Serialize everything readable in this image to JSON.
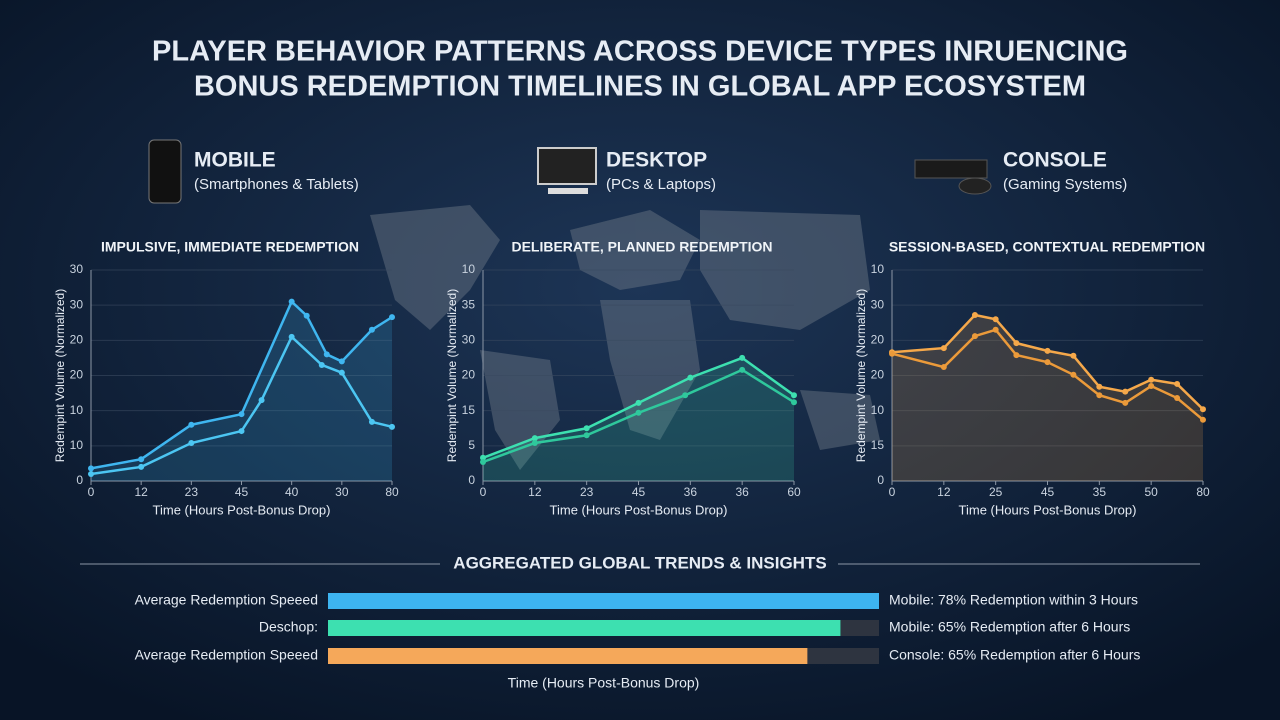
{
  "title_lines": [
    "PLAYER BEHAVIOR PATTERNS ACROSS DEVICE TYPES INRUENCING",
    "BONUS REDEMPTION TIMELINES IN GLOBAL APP ECOSYSTEM"
  ],
  "devices": [
    {
      "name": "MOBILE",
      "subtitle": "(Smartphones & Tablets)"
    },
    {
      "name": "DESKTOP",
      "subtitle": "(PCs & Laptops)"
    },
    {
      "name": "CONSOLE",
      "subtitle": "(Gaming Systems)"
    }
  ],
  "chart_data": [
    {
      "type": "line",
      "title": "IMPULSIVE, IMMEDIATE REDEMPTION",
      "y_label": "Redempint Volume (Normalized)",
      "x_label": "Time (Hours Post-Bonus Drop)",
      "xlim": [
        0,
        60
      ],
      "ylim": [
        0,
        30
      ],
      "xticks": [
        0,
        {
          "value": 10,
          "label": "12"
        },
        {
          "value": 20,
          "label": "23"
        },
        {
          "value": 30,
          "label": "45"
        },
        40,
        {
          "value": 50,
          "label": "30"
        },
        {
          "value": 60,
          "label": "80"
        }
      ],
      "yticks": [
        0,
        {
          "value": 5,
          "label": "10"
        },
        10,
        {
          "value": 15,
          "label": "20"
        },
        20,
        {
          "value": 25,
          "label": "30"
        },
        30
      ],
      "grid": true,
      "series": [
        {
          "color": "#3fb6f0",
          "x": [
            0,
            10,
            20,
            30,
            40,
            43,
            47,
            50,
            56,
            60
          ],
          "values": [
            1.8,
            3.1,
            8,
            9.5,
            25.5,
            23.5,
            18,
            17,
            21.5,
            23.3
          ]
        },
        {
          "color": "#4cc6f2",
          "x": [
            0,
            10,
            20,
            30,
            34,
            40,
            46,
            50,
            56,
            60
          ],
          "values": [
            1,
            2,
            5.4,
            7.1,
            11.5,
            20.5,
            16.5,
            15.4,
            8.4,
            7.7
          ]
        }
      ]
    },
    {
      "type": "line",
      "title": "DELIBERATE, PLANNED REDEMPTION",
      "y_label": "Redempint Volume (Normalized)",
      "x_label": "Time (Hours Post-Bonus Drop)",
      "xlim": [
        0,
        60
      ],
      "ylim": [
        0,
        30
      ],
      "xticks": [
        0,
        {
          "value": 10,
          "label": "12"
        },
        {
          "value": 20,
          "label": "23"
        },
        {
          "value": 30,
          "label": "45"
        },
        {
          "value": 40,
          "label": "36"
        },
        {
          "value": 50,
          "label": "36"
        },
        60
      ],
      "yticks": [
        0,
        5,
        {
          "value": 10,
          "label": "15"
        },
        {
          "value": 15,
          "label": "20"
        },
        {
          "value": 20,
          "label": "30"
        },
        {
          "value": 25,
          "label": "35"
        },
        {
          "value": 30,
          "label": "10"
        }
      ],
      "grid": true,
      "series": [
        {
          "color": "#3de0b0",
          "x": [
            0,
            10,
            20,
            30,
            40,
            50,
            60
          ],
          "values": [
            3.3,
            6.1,
            7.5,
            11.1,
            14.7,
            17.5,
            12.2
          ]
        },
        {
          "color": "#2fc89c",
          "x": [
            0,
            10,
            20,
            30,
            39,
            50,
            60
          ],
          "values": [
            2.7,
            5.4,
            6.5,
            9.7,
            12.2,
            15.8,
            11.2
          ]
        }
      ]
    },
    {
      "type": "line",
      "title": "SESSION-BASED, CONTEXTUAL REDEMPTION",
      "y_label": "Redempint Volume (Normalized)",
      "x_label": "Time (Hours Post-Bonus Drop)",
      "xlim": [
        0,
        60
      ],
      "ylim": [
        0,
        30
      ],
      "xticks": [
        0,
        {
          "value": 10,
          "label": "12"
        },
        {
          "value": 20,
          "label": "25"
        },
        {
          "value": 30,
          "label": "45"
        },
        {
          "value": 40,
          "label": "35"
        },
        50,
        {
          "value": 60,
          "label": "80"
        }
      ],
      "yticks": [
        0,
        {
          "value": 5,
          "label": "15"
        },
        10,
        {
          "value": 15,
          "label": "20"
        },
        20,
        {
          "value": 25,
          "label": "30"
        },
        {
          "value": 30,
          "label": "10"
        }
      ],
      "grid": true,
      "series": [
        {
          "color": "#f5a84a",
          "x": [
            0,
            10,
            16,
            20,
            24,
            30,
            35,
            40,
            45,
            50,
            55,
            60
          ],
          "values": [
            18.3,
            18.9,
            23.6,
            23,
            19.6,
            18.5,
            17.8,
            13.4,
            12.7,
            14.4,
            13.8,
            10.2
          ]
        },
        {
          "color": "#eb9a3a",
          "x": [
            0,
            10,
            16,
            20,
            24,
            30,
            35,
            40,
            45,
            50,
            55,
            60
          ],
          "values": [
            18.1,
            16.2,
            20.6,
            21.5,
            17.9,
            16.9,
            15.1,
            12.2,
            11.1,
            13.5,
            11.8,
            8.7
          ]
        }
      ]
    },
    {
      "type": "hbar",
      "title": "AGGREGATED GLOBAL TRENDS & INSIGHTS",
      "x_label": "Time (Hours Post-Bonus Drop)",
      "xlim": [
        0,
        100
      ],
      "categories": [
        "Average Redemption Speeed",
        "Deschop:",
        "Average Redemption Speeed"
      ],
      "values": [
        100,
        93,
        87
      ],
      "colors": [
        "#3db4f0",
        "#3de0b0",
        "#f5a85a"
      ],
      "annotations": [
        "Mobile: 78% Redemption within 3 Hours",
        "Mobile: 65% Redemption after 6 Hours",
        "Console: 65% Redemption after 6 Hours"
      ]
    }
  ]
}
